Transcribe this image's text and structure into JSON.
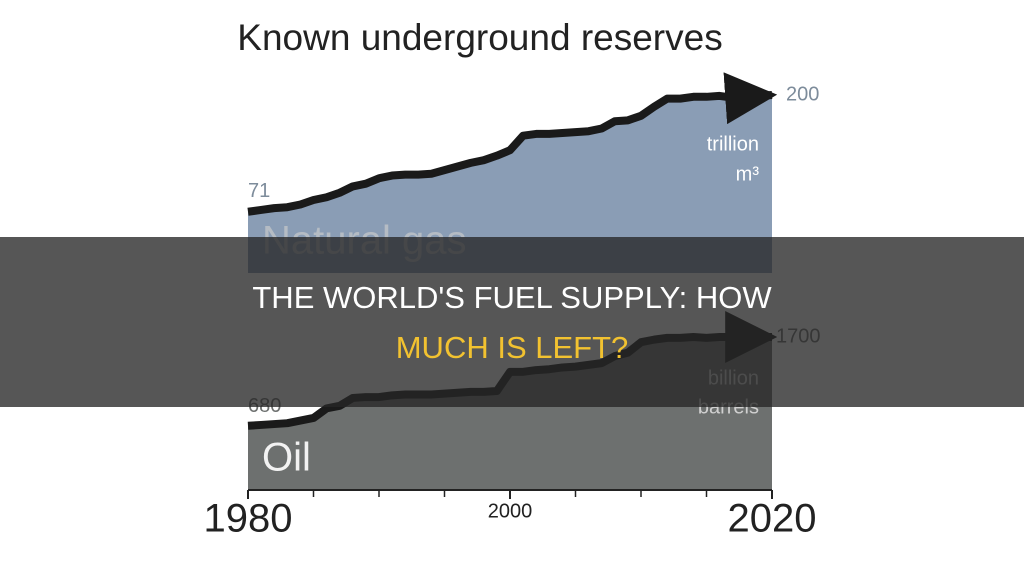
{
  "chart_data": [
    {
      "type": "area",
      "title": "Known underground reserves",
      "series": [
        {
          "name": "Natural gas",
          "color": "#8a9db5",
          "values": [
            71,
            73,
            75,
            76,
            79,
            84,
            87,
            92,
            99,
            102,
            108,
            111,
            112,
            112,
            113,
            117,
            121,
            125,
            128,
            133,
            139,
            155,
            157,
            157,
            158,
            159,
            160,
            163,
            171,
            172,
            177,
            187,
            196,
            196,
            198,
            198,
            199,
            197,
            198,
            199,
            200
          ]
        }
      ],
      "x": [
        1980,
        1981,
        1982,
        1983,
        1984,
        1985,
        1986,
        1987,
        1988,
        1989,
        1990,
        1991,
        1992,
        1993,
        1994,
        1995,
        1996,
        1997,
        1998,
        1999,
        2000,
        2001,
        2002,
        2003,
        2004,
        2005,
        2006,
        2007,
        2008,
        2009,
        2010,
        2011,
        2012,
        2013,
        2014,
        2015,
        2016,
        2017,
        2018,
        2019,
        2020
      ],
      "xlim": [
        1980,
        2020
      ],
      "ylim": [
        0,
        200
      ],
      "unit_lines": [
        "trillion",
        "m³"
      ]
    },
    {
      "type": "area",
      "series": [
        {
          "name": "Oil",
          "color": "#6d706f",
          "values": [
            680,
            690,
            700,
            710,
            740,
            770,
            880,
            910,
            1000,
            1010,
            1010,
            1030,
            1040,
            1040,
            1040,
            1050,
            1060,
            1070,
            1070,
            1080,
            1300,
            1300,
            1320,
            1330,
            1350,
            1360,
            1380,
            1400,
            1480,
            1520,
            1640,
            1670,
            1690,
            1690,
            1700,
            1690,
            1700,
            1700,
            1700,
            1700,
            1700
          ]
        }
      ],
      "x": [
        1980,
        1981,
        1982,
        1983,
        1984,
        1985,
        1986,
        1987,
        1988,
        1989,
        1990,
        1991,
        1992,
        1993,
        1994,
        1995,
        1996,
        1997,
        1998,
        1999,
        2000,
        2001,
        2002,
        2003,
        2004,
        2005,
        2006,
        2007,
        2008,
        2009,
        2010,
        2011,
        2012,
        2013,
        2014,
        2015,
        2016,
        2017,
        2018,
        2019,
        2020
      ],
      "xlim": [
        1980,
        2020
      ],
      "ylim": [
        0,
        1700
      ],
      "xticks": [
        1980,
        2000,
        2020
      ],
      "minor_xticks": [
        1985,
        1990,
        1995,
        2005,
        2010,
        2015
      ],
      "unit_lines": [
        "billion",
        "barrels"
      ]
    }
  ],
  "banner": {
    "lines": [
      "THE WORLD'S FUEL SUPPLY: HOW",
      "MUCH IS LEFT?"
    ]
  }
}
